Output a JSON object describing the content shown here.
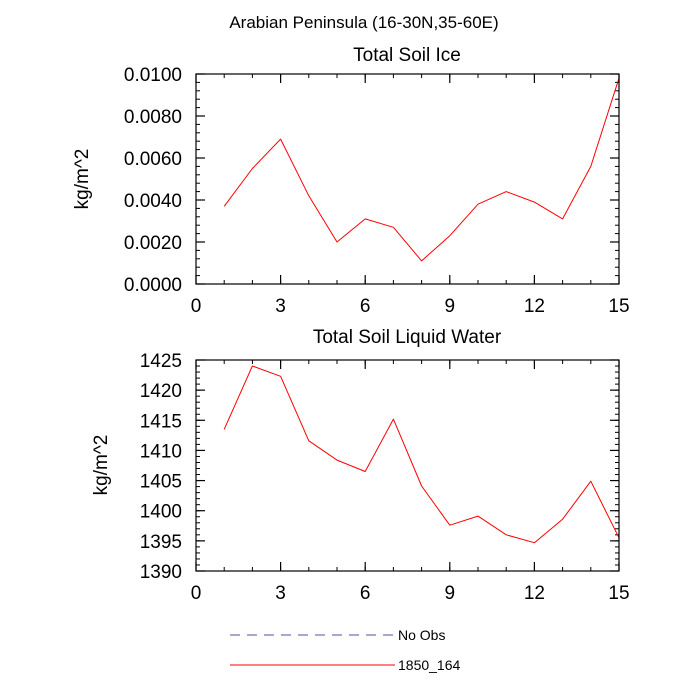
{
  "suptitle": "Arabian Peninsula (16-30N,35-60E)",
  "chart_data": [
    {
      "type": "line",
      "title": "Total Soil Ice",
      "ylabel": "kg/m^2",
      "xlim": [
        0,
        15
      ],
      "ylim": [
        0,
        0.01
      ],
      "x_ticks": [
        0,
        3,
        6,
        9,
        12,
        15
      ],
      "x_tick_labels": [
        "0",
        "3",
        "6",
        "9",
        "12",
        "15"
      ],
      "y_ticks": [
        0,
        0.002,
        0.004,
        0.006,
        0.008,
        0.01
      ],
      "y_tick_labels": [
        "0.0000",
        "0.0020",
        "0.0040",
        "0.0060",
        "0.0080",
        "0.0100"
      ],
      "x": [
        1,
        2,
        3,
        4,
        5,
        6,
        7,
        8,
        9,
        10,
        11,
        12,
        13,
        14,
        15
      ],
      "series": [
        {
          "name": "1850_164",
          "color": "#ff0000",
          "values": [
            0.0037,
            0.0055,
            0.0069,
            0.0042,
            0.002,
            0.0031,
            0.0027,
            0.0011,
            0.0023,
            0.0038,
            0.0044,
            0.0039,
            0.0031,
            0.0056,
            0.0098
          ]
        }
      ]
    },
    {
      "type": "line",
      "title": "Total Soil Liquid Water",
      "ylabel": "kg/m^2",
      "xlim": [
        0,
        15
      ],
      "ylim": [
        1390,
        1425
      ],
      "x_ticks": [
        0,
        3,
        6,
        9,
        12,
        15
      ],
      "x_tick_labels": [
        "0",
        "3",
        "6",
        "9",
        "12",
        "15"
      ],
      "y_ticks": [
        1390,
        1395,
        1400,
        1405,
        1410,
        1415,
        1420,
        1425
      ],
      "y_tick_labels": [
        "1390",
        "1395",
        "1400",
        "1405",
        "1410",
        "1415",
        "1420",
        "1425"
      ],
      "x": [
        1,
        2,
        3,
        4,
        5,
        6,
        7,
        8,
        9,
        10,
        11,
        12,
        13,
        14,
        15
      ],
      "series": [
        {
          "name": "1850_164",
          "color": "#ff0000",
          "values": [
            1413.5,
            1424.0,
            1422.3,
            1411.6,
            1408.4,
            1406.5,
            1415.2,
            1404.1,
            1397.6,
            1399.1,
            1396.0,
            1394.7,
            1398.6,
            1404.9,
            1395.5
          ]
        }
      ]
    }
  ],
  "legend": {
    "placement": "bottom",
    "entries": [
      {
        "label": "No Obs",
        "color": "#5a4d9c",
        "dashed": true
      },
      {
        "label": "1850_164",
        "color": "#ff0000",
        "dashed": false
      }
    ]
  }
}
